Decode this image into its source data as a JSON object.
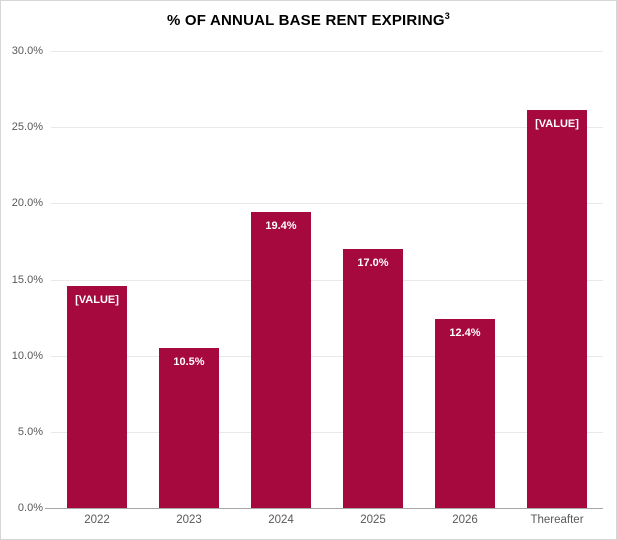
{
  "title": {
    "text": "% OF ANNUAL BASE RENT EXPIRING",
    "superscript": "3"
  },
  "colors": {
    "bar": "#A6093D",
    "bar_label": "#FFFFFF",
    "gridline": "#E9E9E9",
    "axis_line": "#A6A6A6",
    "tick_label": "#595959",
    "title": "#000000",
    "frame_border": "#D6D6D6"
  },
  "chart_data": {
    "type": "bar",
    "title": "% OF ANNUAL BASE RENT EXPIRING³",
    "categories": [
      "2022",
      "2023",
      "2024",
      "2025",
      "2026",
      "Thereafter"
    ],
    "values": [
      14.6,
      10.5,
      19.4,
      17.0,
      12.4,
      26.1
    ],
    "bar_labels": [
      "[VALUE]",
      "10.5%",
      "19.4%",
      "17.0%",
      "12.4%",
      "[VALUE]"
    ],
    "xlabel": "",
    "ylabel": "",
    "ylim": [
      0,
      30
    ],
    "ytick_step": 5,
    "ytick_labels": [
      "0.0%",
      "5.0%",
      "10.0%",
      "15.0%",
      "20.0%",
      "25.0%",
      "30.0%"
    ],
    "grid": true,
    "legend": false
  }
}
